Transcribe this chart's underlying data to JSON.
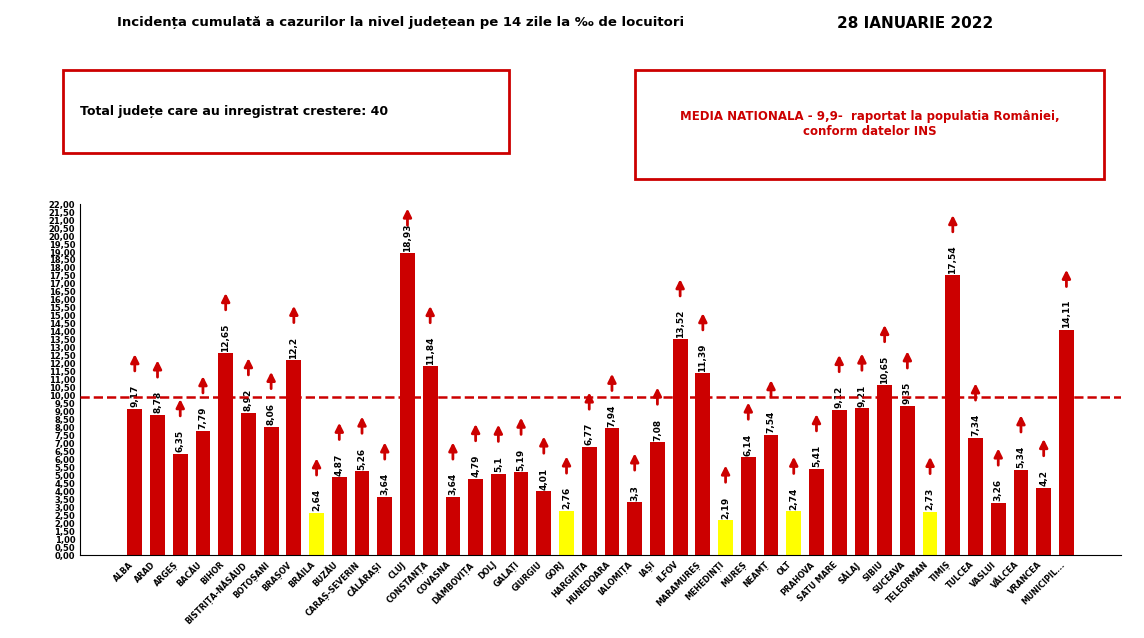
{
  "title": "Incidența cumulată a cazurilor la nivel județean pe 14 zile la ‰ de locuitori",
  "date": "28 IANUARIE 2022",
  "subtitle1": "Total județe care au inregistrat crestere: 40",
  "subtitle2": "MEDIA NATIONALA - 9,9-  raportat la populatia României,\nconform datelor INS",
  "national_avg": 9.9,
  "categories": [
    "ALBA",
    "ARAD",
    "ARGEȘ",
    "BACĂU",
    "BIHOR",
    "BISTRIȚA-NĂSĂUD",
    "BOTOȘANI",
    "BRAȘOV",
    "BRĂILA",
    "BUZĂU",
    "CARAȘ-SEVERIN",
    "CĂLĂRAȘI",
    "CLUJ",
    "CONSTANȚA",
    "COVASNA",
    "DÂMBOVIȚA",
    "DOLJ",
    "GALAȚI",
    "GIURGIU",
    "GORJ",
    "HARGHITA",
    "HUNEDOARA",
    "IALOMIȚA",
    "IAȘI",
    "ILFOV",
    "MARAMUREȘ",
    "MEHEDINȚI",
    "MUREȘ",
    "NEAMȚ",
    "OLT",
    "PRAHOVA",
    "SATU MARE",
    "SĂLAJ",
    "SIBIU",
    "SUCEAVA",
    "TELEORMAN",
    "TIMIȘ",
    "TULCEA",
    "VASLUI",
    "VÂLCEA",
    "VRANCEA",
    "MUNICIPIL..."
  ],
  "values": [
    9.17,
    8.78,
    6.35,
    7.79,
    12.65,
    8.92,
    8.06,
    12.2,
    2.64,
    4.87,
    5.26,
    3.64,
    18.93,
    11.84,
    3.64,
    4.79,
    5.1,
    5.19,
    4.01,
    2.76,
    6.77,
    7.94,
    3.3,
    7.08,
    13.52,
    11.39,
    2.19,
    6.14,
    7.54,
    2.74,
    5.41,
    9.12,
    9.21,
    10.65,
    9.35,
    2.73,
    17.54,
    7.34,
    3.26,
    5.34,
    4.2,
    14.11
  ],
  "bar_colors": [
    "#cc0000",
    "#cc0000",
    "#cc0000",
    "#cc0000",
    "#cc0000",
    "#cc0000",
    "#cc0000",
    "#cc0000",
    "#ffff00",
    "#cc0000",
    "#cc0000",
    "#cc0000",
    "#cc0000",
    "#cc0000",
    "#cc0000",
    "#cc0000",
    "#cc0000",
    "#cc0000",
    "#cc0000",
    "#ffff00",
    "#cc0000",
    "#cc0000",
    "#cc0000",
    "#cc0000",
    "#cc0000",
    "#cc0000",
    "#ffff00",
    "#cc0000",
    "#cc0000",
    "#ffff00",
    "#cc0000",
    "#cc0000",
    "#cc0000",
    "#cc0000",
    "#cc0000",
    "#ffff00",
    "#cc0000",
    "#cc0000",
    "#cc0000",
    "#cc0000",
    "#cc0000",
    "#cc0000"
  ],
  "ylim": [
    0,
    22.0
  ],
  "yticks": [
    0.0,
    0.5,
    1.0,
    1.5,
    2.0,
    2.5,
    3.0,
    3.5,
    4.0,
    4.5,
    5.0,
    5.5,
    6.0,
    6.5,
    7.0,
    7.5,
    8.0,
    8.5,
    9.0,
    9.5,
    10.0,
    10.5,
    11.0,
    11.5,
    12.0,
    12.5,
    13.0,
    13.5,
    14.0,
    14.5,
    15.0,
    15.5,
    16.0,
    16.5,
    17.0,
    17.5,
    18.0,
    18.5,
    19.0,
    19.5,
    20.0,
    20.5,
    21.0,
    21.5,
    22.0
  ],
  "background_color": "#ffffff",
  "arrow_color": "#cc0000",
  "hline_color": "#cc0000",
  "hline_style": "--",
  "hline_value": 9.9,
  "box1_color": "#cc0000",
  "box2_color": "#cc0000",
  "label_fontsize": 6.5,
  "tick_fontsize": 6.0,
  "xtick_fontsize": 5.8
}
